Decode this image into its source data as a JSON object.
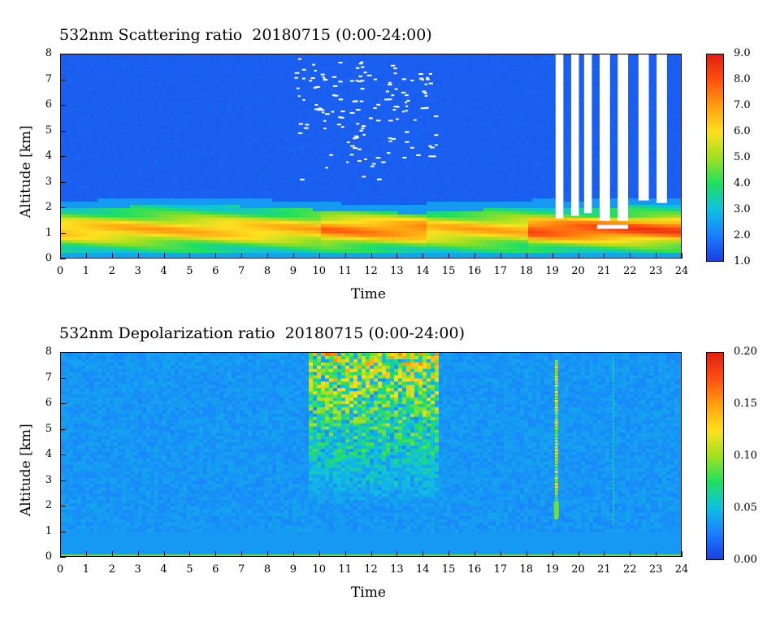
{
  "chart_data": [
    {
      "type": "heatmap",
      "title": "532nm Scattering ratio  20180715 (0:00-24:00)",
      "xlabel": "Time",
      "ylabel": "Altitude [km]",
      "xlim": [
        0,
        24
      ],
      "ylim": [
        0,
        8
      ],
      "x_ticks": [
        "0",
        "1",
        "2",
        "3",
        "4",
        "5",
        "6",
        "7",
        "8",
        "9",
        "10",
        "11",
        "12",
        "13",
        "14",
        "15",
        "16",
        "17",
        "18",
        "19",
        "20",
        "21",
        "22",
        "23",
        "24"
      ],
      "y_ticks": [
        "0",
        "1",
        "2",
        "3",
        "4",
        "5",
        "6",
        "7",
        "8"
      ],
      "colorbar": {
        "range": [
          1.0,
          9.0
        ],
        "tick_labels": [
          "9.0",
          "8.0",
          "7.0",
          "6.0",
          "5.0",
          "4.0",
          "3.0",
          "2.0",
          "1.0"
        ],
        "colors": [
          "#1a3fe0",
          "#1a7fff",
          "#10c0e0",
          "#20e060",
          "#a0e020",
          "#ffe020",
          "#ffa010",
          "#ff5010",
          "#e02010"
        ]
      },
      "features": {
        "background_value": 1.4,
        "boundary_layer_top_km": 2.0,
        "boundary_layer_peak_km": 1.2,
        "cloud_gaps_time_hr": [
          19.0,
          24.0
        ],
        "sparse_noise_time_hr": [
          9.0,
          14.5
        ]
      }
    },
    {
      "type": "heatmap",
      "title": "532nm Depolarization ratio  20180715 (0:00-24:00)",
      "xlabel": "Time",
      "ylabel": "Altitude [km]",
      "xlim": [
        0,
        24
      ],
      "ylim": [
        0,
        8
      ],
      "x_ticks": [
        "0",
        "1",
        "2",
        "3",
        "4",
        "5",
        "6",
        "7",
        "8",
        "9",
        "10",
        "11",
        "12",
        "13",
        "14",
        "15",
        "16",
        "17",
        "18",
        "19",
        "20",
        "21",
        "22",
        "23",
        "24"
      ],
      "y_ticks": [
        "0",
        "1",
        "2",
        "3",
        "4",
        "5",
        "6",
        "7",
        "8"
      ],
      "colorbar": {
        "range": [
          0.0,
          0.2
        ],
        "tick_labels": [
          "0.20",
          "0.15",
          "0.10",
          "0.05",
          "0.00"
        ],
        "colors": [
          "#1a3fe0",
          "#1a7fff",
          "#10c0e0",
          "#20e060",
          "#a0e020",
          "#ffe020",
          "#ffa010",
          "#ff5010",
          "#e02010"
        ]
      },
      "features": {
        "background_value": 0.03,
        "noisy_region_time_hr": [
          9.5,
          14.0
        ],
        "precip_streak_time_hr": [
          19.1,
          21.3
        ]
      }
    }
  ]
}
